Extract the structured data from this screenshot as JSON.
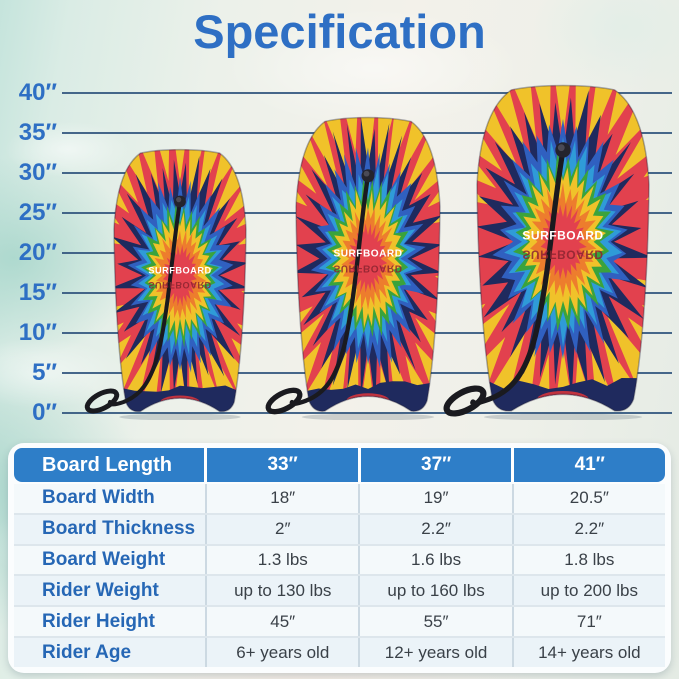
{
  "title": "Specification",
  "colors": {
    "title_blue": "#2e6fc4",
    "ruler_label_blue": "#2e6fc4",
    "ruler_line_navy": "#33567e",
    "table_header_bg": "#2e7ec8",
    "table_header_text": "#ffffff",
    "row_label_blue": "#2667b5",
    "cell_text": "#3a4148",
    "row_bg_light": "#f4f9fb",
    "row_bg_dark": "#ebf3f8",
    "board_yellow": "#f0c22a",
    "board_red": "#e2414e",
    "board_navy": "#1f2a5e",
    "board_blue": "#3060c0",
    "board_cyan": "#2f9bd8",
    "board_green": "#3aa33c",
    "board_orange": "#ed7d2d",
    "board_center_red": "#e2414e",
    "tail_red": "#c2333f",
    "leash_black": "#1a1a1f"
  },
  "ruler": {
    "ticks": [
      "40″",
      "35″",
      "30″",
      "25″",
      "20″",
      "15″",
      "10″",
      "5″",
      "0″"
    ]
  },
  "boards": [
    {
      "name": "board-33in",
      "print_label": "SURFBOARD",
      "length_in": 33
    },
    {
      "name": "board-37in",
      "print_label": "SURFBOARD",
      "length_in": 37
    },
    {
      "name": "board-41in",
      "print_label": "SURFBOARD",
      "length_in": 41
    }
  ],
  "table": {
    "header": {
      "label": "Board Length",
      "values": [
        "33″",
        "37″",
        "41″"
      ]
    },
    "rows": [
      {
        "label": "Board Width",
        "values": [
          "18″",
          "19″",
          "20.5″"
        ]
      },
      {
        "label": "Board Thickness",
        "values": [
          "2″",
          "2.2″",
          "2.2″"
        ]
      },
      {
        "label": "Board Weight",
        "values": [
          "1.3 lbs",
          "1.6 lbs",
          "1.8 lbs"
        ]
      },
      {
        "label": "Rider Weight",
        "values": [
          "up to 130 lbs",
          "up to 160 lbs",
          "up to 200 lbs"
        ]
      },
      {
        "label": "Rider Height",
        "values": [
          "45″",
          "55″",
          "71″"
        ]
      },
      {
        "label": "Rider Age",
        "values": [
          "6+ years old",
          "12+ years old",
          "14+ years old"
        ]
      }
    ]
  }
}
